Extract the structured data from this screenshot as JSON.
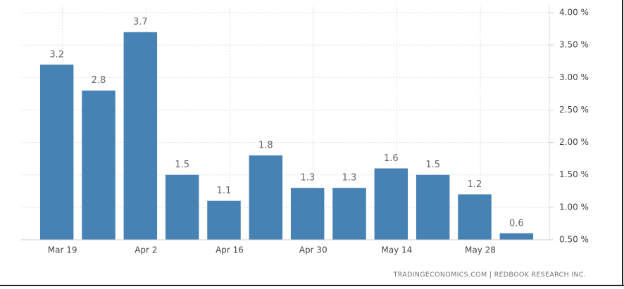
{
  "chart_data": {
    "type": "bar",
    "categories": [
      "Mar 19",
      null,
      "Apr 2",
      null,
      "Apr 16",
      null,
      "Apr 30",
      null,
      "May 14",
      null,
      "May 28",
      null
    ],
    "values": [
      3.2,
      2.8,
      3.7,
      1.5,
      1.1,
      1.8,
      1.3,
      1.3,
      1.6,
      1.5,
      1.2,
      0.6
    ],
    "color": "#4682b4",
    "ylim": [
      0.5,
      4.0
    ],
    "yticks": [
      {
        "value": 0.5,
        "label": "0.50 %"
      },
      {
        "value": 1.0,
        "label": "1.00 %"
      },
      {
        "value": 1.5,
        "label": "1.50 %"
      },
      {
        "value": 2.0,
        "label": "2.00 %"
      },
      {
        "value": 2.5,
        "label": "2.50 %"
      },
      {
        "value": 3.0,
        "label": "3.00 %"
      },
      {
        "value": 3.5,
        "label": "3.50 %"
      },
      {
        "value": 4.0,
        "label": "4.00 %"
      }
    ],
    "grid": true,
    "source": "TRADINGECONOMICS.COM  |  REDBOOK RESEARCH INC."
  }
}
